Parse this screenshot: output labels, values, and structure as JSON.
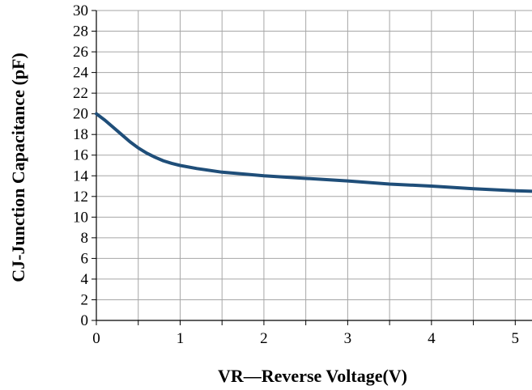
{
  "chart_data": {
    "type": "line",
    "title": "",
    "xlabel": "VR—Reverse Voltage(V)",
    "ylabel": "CJ-Junction Capacitance (pF)",
    "xlim": [
      0,
      5.2
    ],
    "ylim": [
      0,
      30
    ],
    "grid": true,
    "legend": "none",
    "x_ticks": [
      0,
      0.5,
      1,
      1.5,
      2,
      2.5,
      3,
      3.5,
      4,
      4.5,
      5
    ],
    "x_tick_labels": [
      "0",
      "",
      "1",
      "",
      "2",
      "",
      "3",
      "",
      "4",
      "",
      "5"
    ],
    "y_ticks": [
      0,
      2,
      4,
      6,
      8,
      10,
      12,
      14,
      16,
      18,
      20,
      22,
      24,
      26,
      28,
      30
    ],
    "y_tick_labels": [
      "0",
      "2",
      "4",
      "6",
      "8",
      "10",
      "12",
      "14",
      "16",
      "18",
      "20",
      "22",
      "24",
      "26",
      "28",
      "30"
    ],
    "series": [
      {
        "color": "#1f4e79",
        "x": [
          0,
          0.1,
          0.2,
          0.3,
          0.4,
          0.5,
          0.6,
          0.7,
          0.8,
          0.9,
          1.0,
          1.2,
          1.5,
          2.0,
          2.5,
          3.0,
          3.5,
          4.0,
          4.5,
          5.0,
          5.2
        ],
        "y": [
          20.0,
          19.4,
          18.7,
          18.0,
          17.3,
          16.7,
          16.2,
          15.8,
          15.45,
          15.2,
          15.0,
          14.7,
          14.35,
          14.0,
          13.75,
          13.5,
          13.2,
          13.0,
          12.75,
          12.55,
          12.5
        ]
      }
    ]
  },
  "colors": {
    "grid": "#a6a6a6",
    "axis": "#000000",
    "line": "#1f4e79"
  }
}
